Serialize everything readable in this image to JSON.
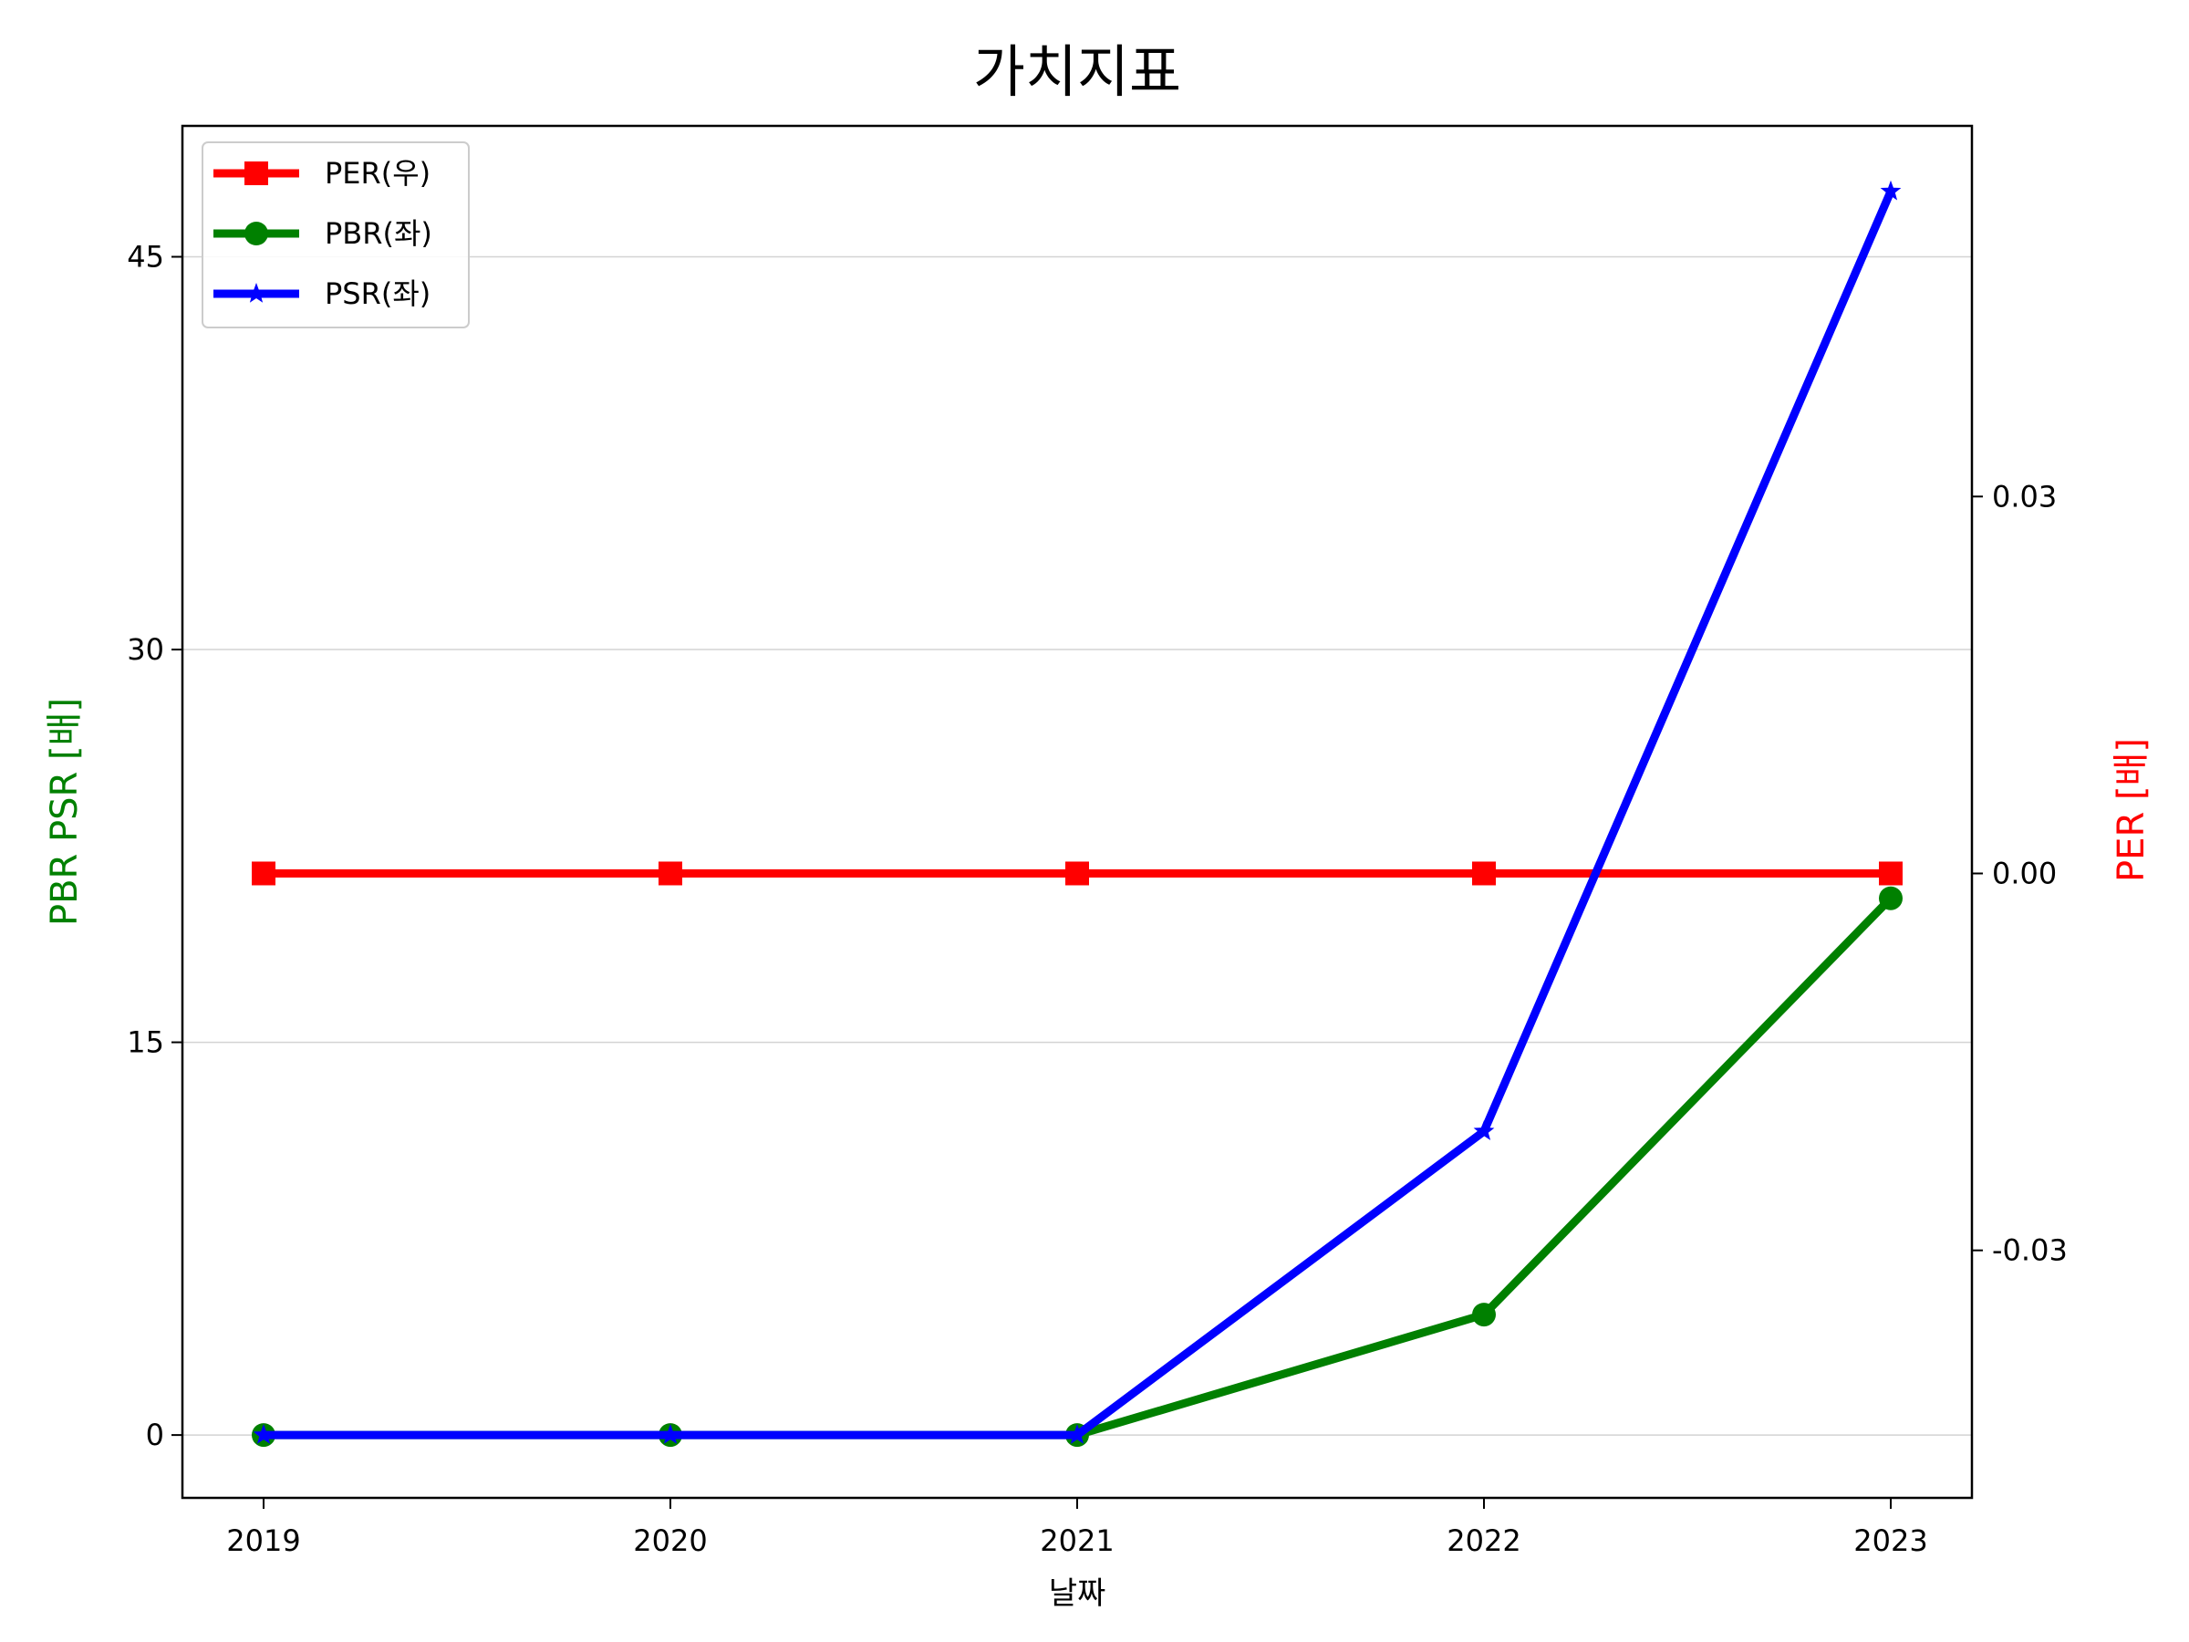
{
  "chart_data": {
    "type": "line",
    "title": "가치지표",
    "xlabel": "날짜",
    "ylabel_left": "PBR PSR [배]",
    "ylabel_right": "PER [배]",
    "categories": [
      "2019",
      "2020",
      "2021",
      "2022",
      "2023"
    ],
    "ylim_left": [
      -2.4,
      50
    ],
    "yticks_left": [
      0,
      15,
      30,
      45
    ],
    "ylim_right": [
      -0.0497,
      0.0595
    ],
    "yticks_right": [
      -0.03,
      0.0,
      0.03
    ],
    "ytick_labels_right": [
      "-0.03",
      "0.00",
      "0.03"
    ],
    "grid": "horizontal (left axis)",
    "legend_position": "upper left",
    "series": [
      {
        "name": "PER(우)",
        "axis": "right",
        "color": "#ff0000",
        "marker": "square",
        "values": [
          0,
          0,
          0,
          0,
          0
        ]
      },
      {
        "name": "PBR(좌)",
        "axis": "left",
        "color": "#008000",
        "marker": "circle",
        "values": [
          0,
          0,
          0,
          4.6,
          20.5
        ]
      },
      {
        "name": "PSR(좌)",
        "axis": "left",
        "color": "#0000ff",
        "marker": "star",
        "values": [
          0,
          0,
          0,
          11.6,
          47.5
        ]
      }
    ]
  }
}
